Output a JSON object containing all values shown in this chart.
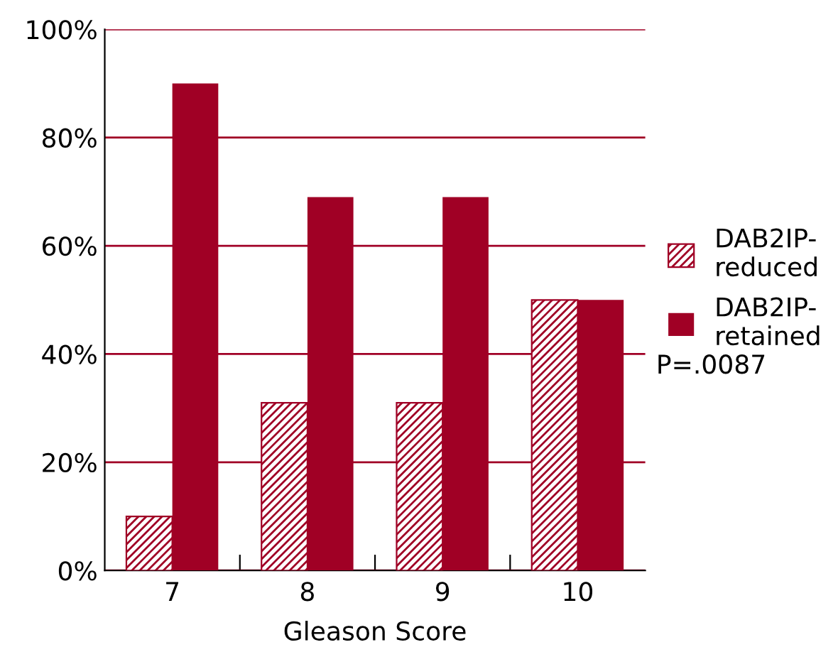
{
  "chart_data": {
    "type": "bar",
    "xlabel": "Gleason Score",
    "categories": [
      "7",
      "8",
      "9",
      "10"
    ],
    "series": [
      {
        "name": "DAB2IP-\nreduced",
        "color": "#a00025",
        "values": [
          10,
          31,
          31,
          50
        ]
      },
      {
        "name": "DAB2IP-\nretained",
        "color": "#a00025",
        "values": [
          90,
          69,
          69,
          50
        ]
      }
    ],
    "ylim": [
      0,
      100
    ],
    "yticks": [
      {
        "value": 0,
        "label": "0%"
      },
      {
        "value": 20,
        "label": "20%"
      },
      {
        "value": 40,
        "label": "40%"
      },
      {
        "value": 60,
        "label": "60%"
      },
      {
        "value": 80,
        "label": "80%"
      },
      {
        "value": 100,
        "label": "100%"
      }
    ],
    "grid": "y",
    "legend": "right",
    "annotations": [
      "P=.0087"
    ]
  }
}
